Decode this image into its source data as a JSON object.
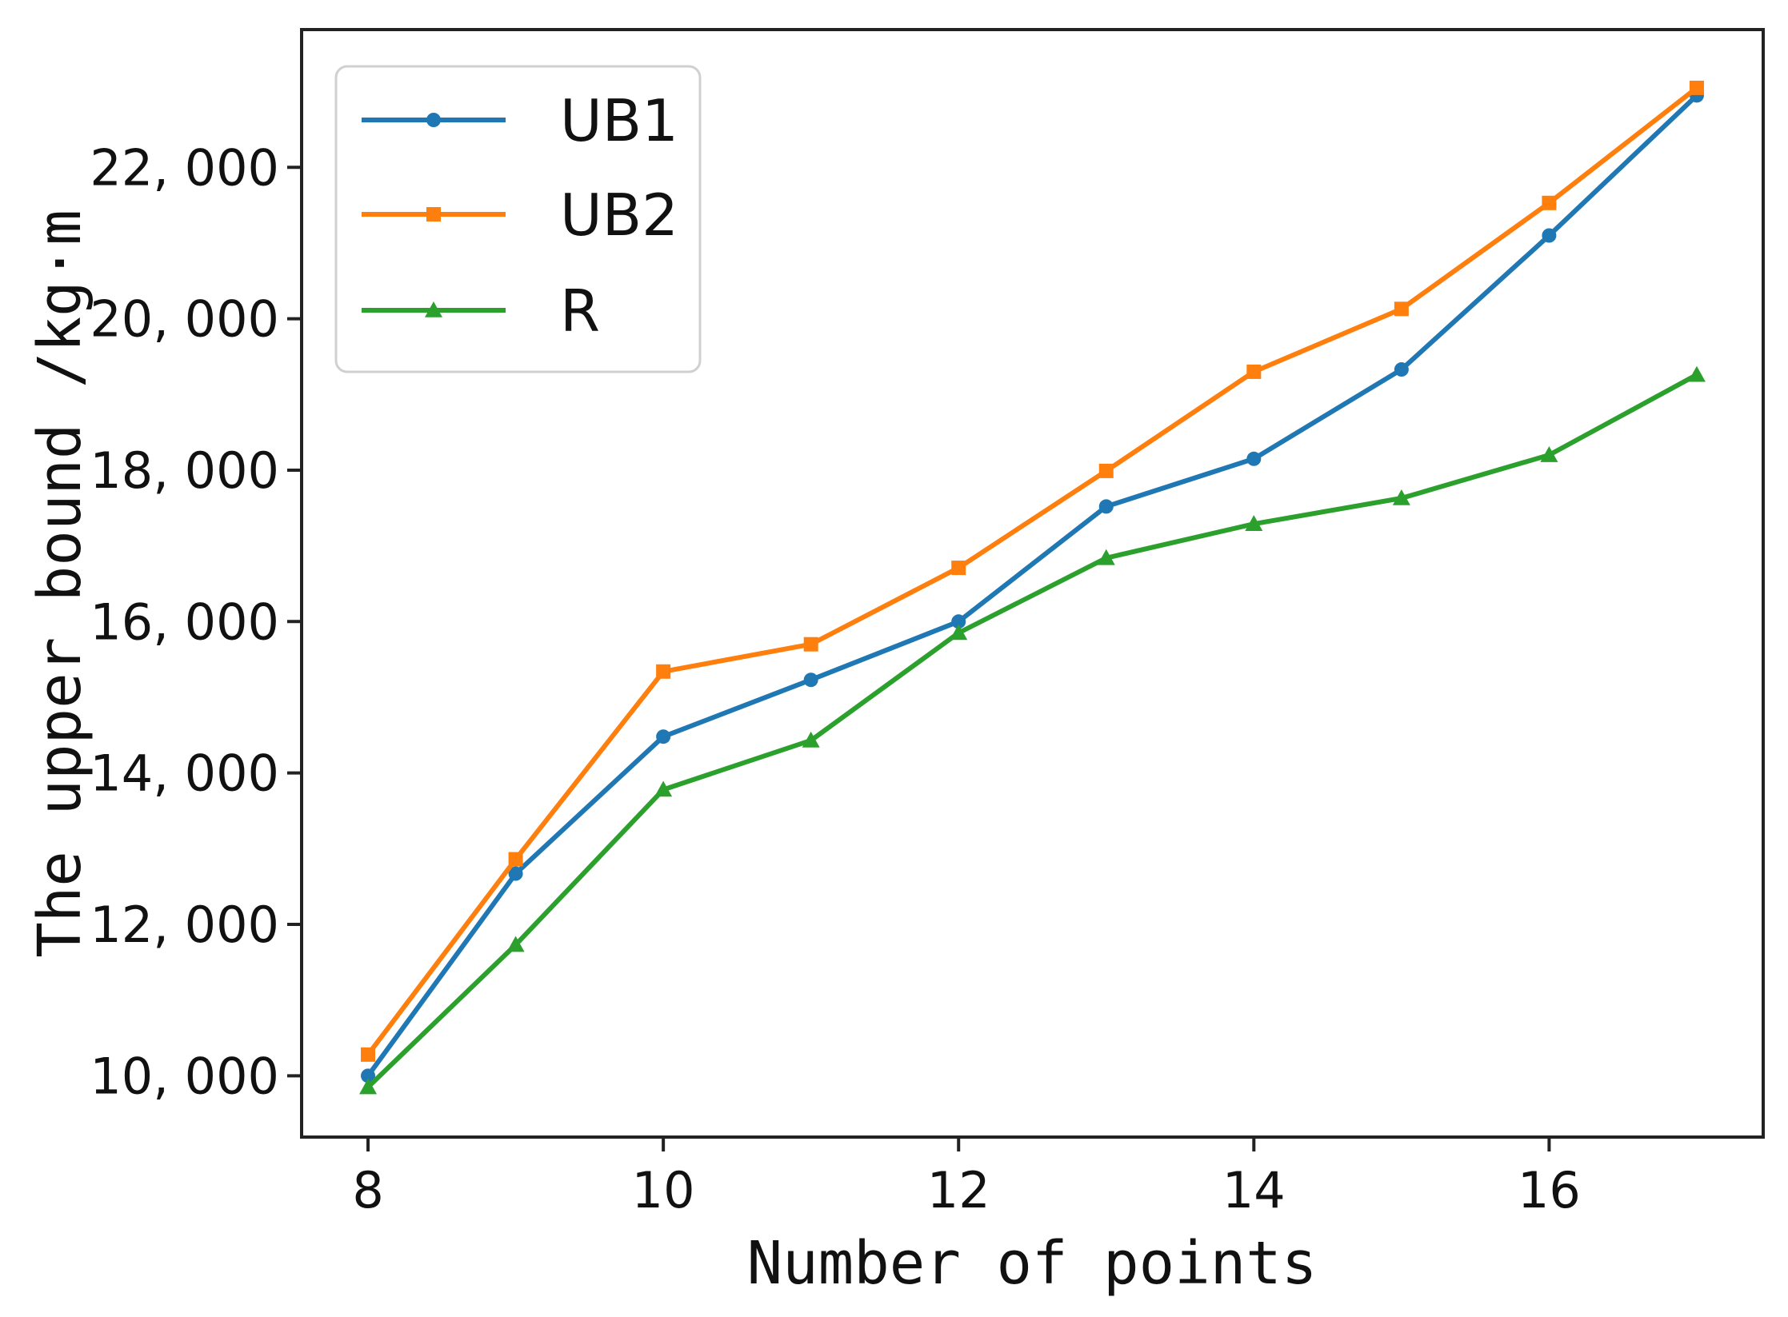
{
  "chart_data": {
    "type": "line",
    "xlabel": "Number of points",
    "ylabel": "The upper bound /kg·m",
    "xlim": [
      7.55,
      17.45
    ],
    "ylim": [
      9190,
      23820
    ],
    "x_ticks": [
      8,
      10,
      12,
      14,
      16
    ],
    "y_ticks": [
      10000,
      12000,
      14000,
      16000,
      18000,
      20000,
      22000
    ],
    "x_tick_labels": [
      "8",
      "10",
      "12",
      "14",
      "16"
    ],
    "y_tick_labels": [
      "10, 000",
      "12, 000",
      "14, 000",
      "16, 000",
      "18, 000",
      "20, 000",
      "22, 000"
    ],
    "grid": false,
    "legend_position": "top-left",
    "x": [
      8,
      9,
      10,
      11,
      12,
      13,
      14,
      15,
      16,
      17
    ],
    "series": [
      {
        "name": "UB1",
        "color": "#1f77b4",
        "marker": "circle",
        "values": [
          10000,
          12670,
          14480,
          15230,
          16000,
          17520,
          18150,
          19330,
          21100,
          22950
        ]
      },
      {
        "name": "UB2",
        "color": "#ff7f0e",
        "marker": "square",
        "values": [
          10280,
          12860,
          15340,
          15700,
          16710,
          17990,
          19300,
          20130,
          21530,
          23050
        ]
      },
      {
        "name": "R",
        "color": "#2ca02c",
        "marker": "triangle",
        "values": [
          9850,
          11730,
          13780,
          14430,
          15850,
          16840,
          17290,
          17630,
          18200,
          19260
        ]
      }
    ]
  }
}
